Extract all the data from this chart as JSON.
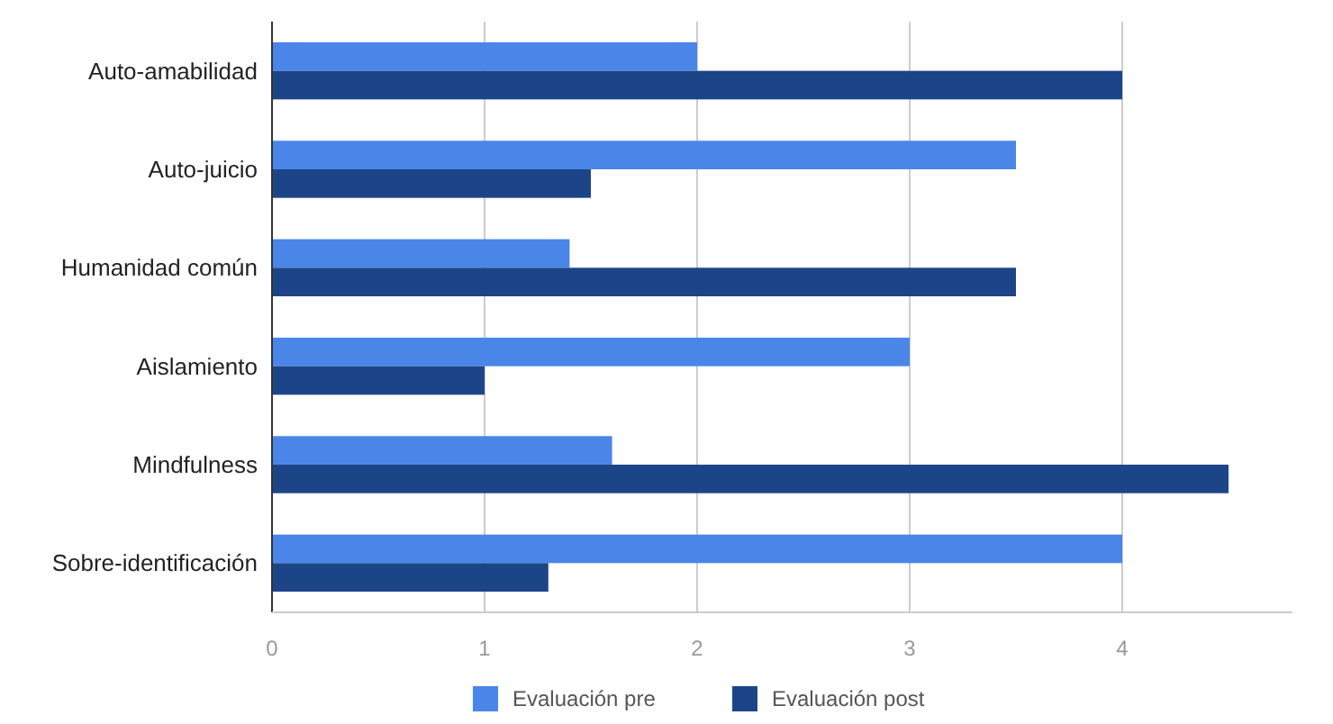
{
  "chart_data": {
    "type": "bar",
    "orientation": "horizontal",
    "categories": [
      "Auto-amabilidad",
      "Auto-juicio",
      "Humanidad común",
      "Aislamiento",
      "Mindfulness",
      "Sobre-identificación"
    ],
    "series": [
      {
        "name": "Evaluación pre",
        "color": "#4a86e8",
        "values": [
          2,
          3.5,
          1.4,
          3,
          1.6,
          4
        ]
      },
      {
        "name": "Evaluación post",
        "color": "#1c4587",
        "values": [
          4,
          1.5,
          3.5,
          1,
          4.5,
          1.3
        ]
      }
    ],
    "xlim": [
      0,
      4.8
    ],
    "xticks": [
      0,
      1,
      2,
      3,
      4
    ],
    "grid": "x",
    "legend": "bottom"
  }
}
